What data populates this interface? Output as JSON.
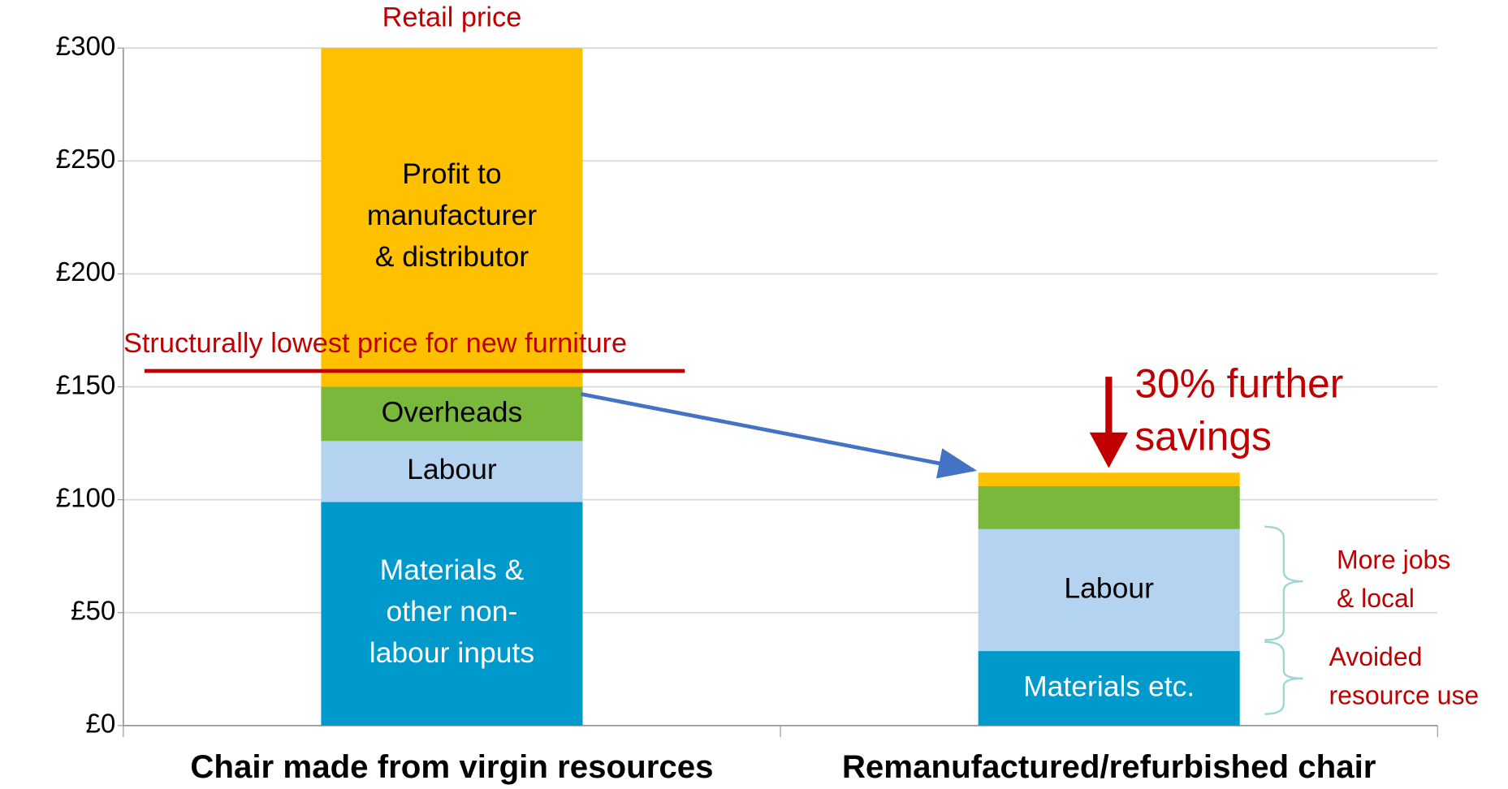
{
  "chart_data": {
    "type": "bar",
    "stacked": true,
    "categories": [
      "Chair made from virgin resources",
      "Remanufactured/refurbished chair"
    ],
    "series": [
      {
        "color": "#0099cc",
        "text_color": "#ffffff",
        "values": [
          99,
          33
        ],
        "labels": [
          "Materials &\nother non-\nlabour inputs",
          "Materials etc."
        ]
      },
      {
        "color": "#b3d3f0",
        "text_color": "#000000",
        "values": [
          27,
          54
        ],
        "labels": [
          "Labour",
          "Labour"
        ]
      },
      {
        "color": "#7ab83c",
        "text_color": "#000000",
        "values": [
          24,
          19
        ],
        "labels": [
          "Overheads",
          null
        ]
      },
      {
        "color": "#ffc000",
        "text_color": "#000000",
        "values": [
          150,
          6
        ],
        "labels": [
          "Profit to\nmanufacturer\n& distributor",
          null
        ]
      }
    ],
    "ylim": [
      0,
      300
    ],
    "yticks": [
      {
        "value": 0,
        "label": "£0"
      },
      {
        "value": 50,
        "label": "£50"
      },
      {
        "value": 100,
        "label": "£100"
      },
      {
        "value": 150,
        "label": "£150"
      },
      {
        "value": 200,
        "label": "£200"
      },
      {
        "value": 250,
        "label": "£250"
      },
      {
        "value": 300,
        "label": "£300"
      }
    ],
    "grid": true,
    "reference_line": {
      "label": "Structurally lowest price for new furniture",
      "value": 157,
      "color": "#c00000"
    },
    "annotations": {
      "retail_price": "Retail price",
      "savings": "30% further\nsavings",
      "jobs": "More jobs\n& local",
      "resources": "Avoided\nresource use"
    }
  }
}
